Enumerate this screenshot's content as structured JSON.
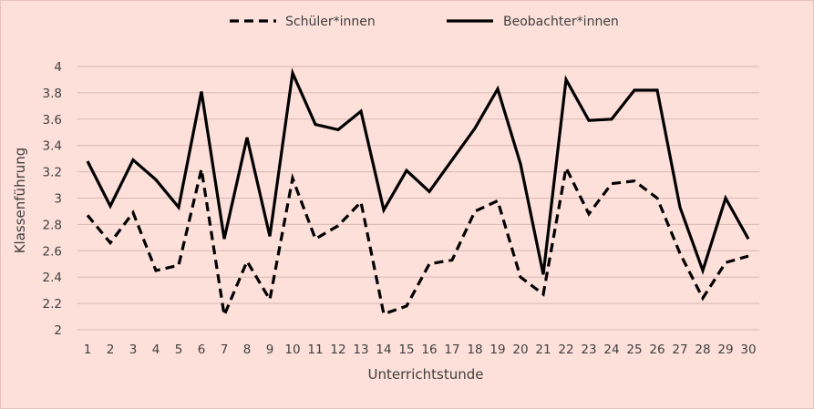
{
  "chart_data": {
    "type": "line",
    "title": "",
    "xlabel": "Unterrichtstunde",
    "ylabel": "Klassenführung",
    "x": [
      1,
      2,
      3,
      4,
      5,
      6,
      7,
      8,
      9,
      10,
      11,
      12,
      13,
      14,
      15,
      16,
      17,
      18,
      19,
      20,
      21,
      22,
      23,
      24,
      25,
      26,
      27,
      28,
      29,
      30
    ],
    "ylim": [
      2,
      4
    ],
    "yticks": [
      2,
      2.2,
      2.4,
      2.6,
      2.8,
      3,
      3.2,
      3.4,
      3.6,
      3.8,
      4
    ],
    "ytick_labels": [
      "2",
      "2.2",
      "2.4",
      "2.6",
      "2.8",
      "3",
      "3.2",
      "3.4",
      "3.6",
      "3.8",
      "4"
    ],
    "grid": "horizontal",
    "legend_position": "top-center",
    "colors": {
      "background": "#fde0da",
      "line": "#000000",
      "grid": "#d9b8b3",
      "text": "#404040"
    },
    "series": [
      {
        "name": "Schüler*innen",
        "style": "dashed",
        "values": [
          2.87,
          2.66,
          2.89,
          2.45,
          2.49,
          3.22,
          2.11,
          2.52,
          2.23,
          3.15,
          2.69,
          2.79,
          2.97,
          2.12,
          2.18,
          2.5,
          2.53,
          2.9,
          2.98,
          2.4,
          2.27,
          3.23,
          2.88,
          3.11,
          3.13,
          3.0,
          2.58,
          2.24,
          2.51,
          2.56
        ]
      },
      {
        "name": "Beobachter*innen",
        "style": "solid",
        "values": [
          3.28,
          2.94,
          3.29,
          3.14,
          2.93,
          3.81,
          2.69,
          3.46,
          2.71,
          3.95,
          3.56,
          3.52,
          3.66,
          2.91,
          3.21,
          3.05,
          3.29,
          3.53,
          3.83,
          3.26,
          2.42,
          3.9,
          3.59,
          3.6,
          3.82,
          3.82,
          2.93,
          2.45,
          3.0,
          2.69
        ]
      }
    ]
  }
}
